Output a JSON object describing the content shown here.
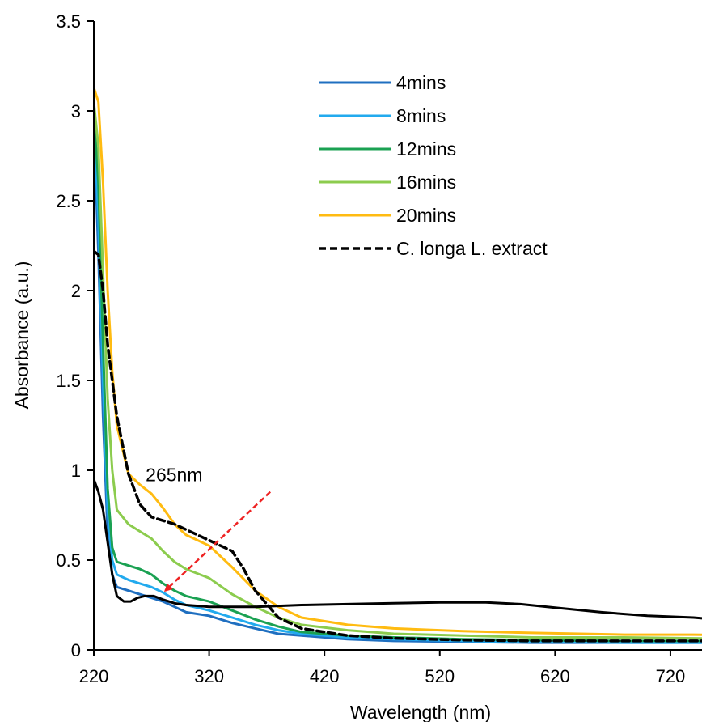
{
  "chart_data": {
    "type": "line",
    "title": "",
    "xlabel": "Wavelength (nm)",
    "ylabel": "Absorbance (a.u.)",
    "xlim": [
      220,
      780
    ],
    "ylim": [
      0,
      3.5
    ],
    "xticks": [
      220,
      320,
      420,
      520,
      620,
      720
    ],
    "yticks": [
      0,
      0.5,
      1,
      1.5,
      2,
      2.5,
      3,
      3.5
    ],
    "xtick_labels": [
      "220",
      "320",
      "420",
      "520",
      "620",
      "720"
    ],
    "ytick_labels": [
      "0",
      "0.5",
      "1",
      "1.5",
      "2",
      "2.5",
      "3",
      "3.5"
    ],
    "grid": false,
    "legend_position": "top-center",
    "series": [
      {
        "name": "4mins",
        "color": "#1f6fc0",
        "dash": "solid",
        "points": [
          [
            220,
            2.95
          ],
          [
            224,
            2.2
          ],
          [
            228,
            1.3
          ],
          [
            232,
            0.65
          ],
          [
            236,
            0.42
          ],
          [
            240,
            0.35
          ],
          [
            250,
            0.33
          ],
          [
            260,
            0.31
          ],
          [
            270,
            0.29
          ],
          [
            280,
            0.27
          ],
          [
            290,
            0.24
          ],
          [
            300,
            0.21
          ],
          [
            320,
            0.19
          ],
          [
            340,
            0.15
          ],
          [
            360,
            0.12
          ],
          [
            380,
            0.09
          ],
          [
            400,
            0.08
          ],
          [
            440,
            0.06
          ],
          [
            480,
            0.05
          ],
          [
            540,
            0.045
          ],
          [
            600,
            0.04
          ],
          [
            680,
            0.04
          ],
          [
            740,
            0.04
          ],
          [
            780,
            0.04
          ]
        ]
      },
      {
        "name": "8mins",
        "color": "#22aaee",
        "dash": "solid",
        "points": [
          [
            220,
            2.97
          ],
          [
            224,
            2.4
          ],
          [
            228,
            1.5
          ],
          [
            232,
            0.78
          ],
          [
            236,
            0.5
          ],
          [
            240,
            0.42
          ],
          [
            250,
            0.39
          ],
          [
            260,
            0.37
          ],
          [
            270,
            0.35
          ],
          [
            280,
            0.32
          ],
          [
            290,
            0.28
          ],
          [
            300,
            0.25
          ],
          [
            320,
            0.22
          ],
          [
            340,
            0.18
          ],
          [
            360,
            0.14
          ],
          [
            380,
            0.11
          ],
          [
            400,
            0.09
          ],
          [
            440,
            0.07
          ],
          [
            480,
            0.06
          ],
          [
            540,
            0.05
          ],
          [
            600,
            0.045
          ],
          [
            680,
            0.04
          ],
          [
            740,
            0.04
          ],
          [
            780,
            0.04
          ]
        ]
      },
      {
        "name": "12mins",
        "color": "#1aa152",
        "dash": "solid",
        "points": [
          [
            220,
            3.0
          ],
          [
            224,
            2.6
          ],
          [
            228,
            1.7
          ],
          [
            232,
            0.9
          ],
          [
            236,
            0.57
          ],
          [
            240,
            0.49
          ],
          [
            250,
            0.47
          ],
          [
            260,
            0.45
          ],
          [
            270,
            0.42
          ],
          [
            280,
            0.37
          ],
          [
            290,
            0.33
          ],
          [
            300,
            0.3
          ],
          [
            320,
            0.27
          ],
          [
            340,
            0.22
          ],
          [
            360,
            0.17
          ],
          [
            380,
            0.13
          ],
          [
            400,
            0.1
          ],
          [
            440,
            0.08
          ],
          [
            480,
            0.07
          ],
          [
            540,
            0.06
          ],
          [
            600,
            0.055
          ],
          [
            680,
            0.05
          ],
          [
            740,
            0.05
          ],
          [
            780,
            0.05
          ]
        ]
      },
      {
        "name": "16mins",
        "color": "#8ccc4e",
        "dash": "solid",
        "points": [
          [
            220,
            3.05
          ],
          [
            224,
            2.8
          ],
          [
            228,
            2.1
          ],
          [
            232,
            1.4
          ],
          [
            236,
            1.0
          ],
          [
            240,
            0.78
          ],
          [
            250,
            0.7
          ],
          [
            260,
            0.66
          ],
          [
            270,
            0.62
          ],
          [
            280,
            0.55
          ],
          [
            290,
            0.49
          ],
          [
            300,
            0.45
          ],
          [
            320,
            0.4
          ],
          [
            340,
            0.31
          ],
          [
            360,
            0.24
          ],
          [
            380,
            0.18
          ],
          [
            400,
            0.14
          ],
          [
            440,
            0.11
          ],
          [
            480,
            0.09
          ],
          [
            540,
            0.08
          ],
          [
            600,
            0.07
          ],
          [
            680,
            0.07
          ],
          [
            740,
            0.065
          ],
          [
            780,
            0.06
          ]
        ]
      },
      {
        "name": "20mins",
        "color": "#ffbb11",
        "dash": "solid",
        "points": [
          [
            220,
            3.13
          ],
          [
            224,
            3.05
          ],
          [
            228,
            2.6
          ],
          [
            232,
            2.0
          ],
          [
            236,
            1.55
          ],
          [
            240,
            1.25
          ],
          [
            250,
            0.98
          ],
          [
            260,
            0.92
          ],
          [
            270,
            0.87
          ],
          [
            280,
            0.79
          ],
          [
            290,
            0.7
          ],
          [
            300,
            0.64
          ],
          [
            320,
            0.58
          ],
          [
            340,
            0.46
          ],
          [
            360,
            0.33
          ],
          [
            380,
            0.24
          ],
          [
            400,
            0.18
          ],
          [
            440,
            0.14
          ],
          [
            480,
            0.12
          ],
          [
            540,
            0.105
          ],
          [
            600,
            0.095
          ],
          [
            680,
            0.085
          ],
          [
            740,
            0.085
          ],
          [
            780,
            0.08
          ]
        ]
      },
      {
        "name": "C. longa L. extract",
        "color": "#000000",
        "dash": "dashed",
        "points": [
          [
            220,
            2.22
          ],
          [
            224,
            2.2
          ],
          [
            228,
            2.0
          ],
          [
            232,
            1.7
          ],
          [
            236,
            1.5
          ],
          [
            240,
            1.3
          ],
          [
            250,
            0.98
          ],
          [
            260,
            0.81
          ],
          [
            270,
            0.74
          ],
          [
            280,
            0.72
          ],
          [
            290,
            0.7
          ],
          [
            300,
            0.67
          ],
          [
            320,
            0.61
          ],
          [
            330,
            0.58
          ],
          [
            340,
            0.55
          ],
          [
            350,
            0.45
          ],
          [
            360,
            0.33
          ],
          [
            380,
            0.18
          ],
          [
            400,
            0.12
          ],
          [
            440,
            0.08
          ],
          [
            480,
            0.065
          ],
          [
            540,
            0.055
          ],
          [
            600,
            0.05
          ],
          [
            680,
            0.05
          ],
          [
            740,
            0.05
          ],
          [
            780,
            0.05
          ]
        ]
      },
      {
        "name": "",
        "color": "#000000",
        "dash": "solid",
        "points": [
          [
            220,
            0.95
          ],
          [
            224,
            0.88
          ],
          [
            228,
            0.78
          ],
          [
            232,
            0.6
          ],
          [
            236,
            0.42
          ],
          [
            240,
            0.3
          ],
          [
            246,
            0.27
          ],
          [
            252,
            0.27
          ],
          [
            258,
            0.29
          ],
          [
            264,
            0.3
          ],
          [
            272,
            0.3
          ],
          [
            280,
            0.28
          ],
          [
            290,
            0.26
          ],
          [
            300,
            0.25
          ],
          [
            320,
            0.24
          ],
          [
            360,
            0.24
          ],
          [
            400,
            0.25
          ],
          [
            440,
            0.255
          ],
          [
            480,
            0.26
          ],
          [
            520,
            0.265
          ],
          [
            560,
            0.265
          ],
          [
            590,
            0.255
          ],
          [
            620,
            0.235
          ],
          [
            660,
            0.21
          ],
          [
            700,
            0.19
          ],
          [
            740,
            0.18
          ],
          [
            780,
            0.16
          ]
        ]
      }
    ],
    "annotations": [
      {
        "text": "265nm",
        "x": 265,
        "y": 0.94,
        "arrow_from": [
          373,
          0.88
        ],
        "arrow_to": [
          282,
          0.33
        ],
        "color": "#ee2222"
      }
    ]
  }
}
